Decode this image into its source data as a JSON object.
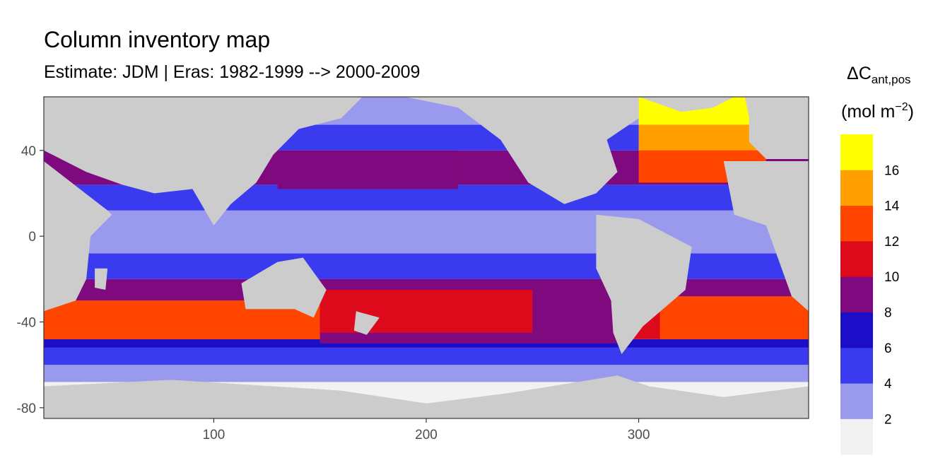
{
  "chart_data": {
    "type": "heatmap",
    "title": "Column inventory map",
    "subtitle": "Estimate: JDM  | Eras: 1982-1999 --> 2000-2009",
    "x_ticks": [
      100,
      200,
      300
    ],
    "y_ticks": [
      40,
      0,
      -40,
      -80
    ],
    "xlim": [
      20,
      380
    ],
    "ylim": [
      -85,
      65
    ],
    "legend": {
      "title_main": "ΔC",
      "title_sub": "ant,pos",
      "unit_main": "(mol m",
      "unit_sup": "−2",
      "unit_close": ")",
      "labels": [
        "2",
        "4",
        "6",
        "8",
        "10",
        "12",
        "14",
        "16"
      ],
      "colors": [
        "#F2F2F2",
        "#9999EE",
        "#3A3AEE",
        "#1C0DC8",
        "#7F0A7F",
        "#DD0A1C",
        "#FF4500",
        "#FFA000",
        "#FFFF00"
      ]
    },
    "land_color": "#CCCCCC",
    "bands": [
      {
        "name": "southern-ocean-far",
        "lat": [
          -85,
          -68
        ],
        "value": 1
      },
      {
        "name": "southern-ocean",
        "lat": [
          -68,
          -60
        ],
        "value": 2
      },
      {
        "name": "southern-front",
        "lat": [
          -60,
          -52
        ],
        "value": 4
      },
      {
        "name": "southern-mid",
        "lat": [
          -52,
          -48
        ],
        "value": 6
      },
      {
        "name": "subantarctic",
        "lat": [
          -48,
          -30
        ],
        "value": 11
      },
      {
        "name": "subtropical-south",
        "lat": [
          -30,
          -20
        ],
        "value": 9
      },
      {
        "name": "tropics-south",
        "lat": [
          -20,
          -8
        ],
        "value": 5
      },
      {
        "name": "equatorial",
        "lat": [
          -8,
          12
        ],
        "value": 3
      },
      {
        "name": "tropics-north",
        "lat": [
          12,
          24
        ],
        "value": 5
      },
      {
        "name": "subtropical-north",
        "lat": [
          24,
          40
        ],
        "value": 9
      },
      {
        "name": "north-mid",
        "lat": [
          40,
          52
        ],
        "value": 5
      },
      {
        "name": "north-high",
        "lat": [
          52,
          65
        ],
        "value": 3
      }
    ],
    "features": [
      {
        "name": "indian-subantarctic-hotspot",
        "lon": [
          20,
          150
        ],
        "lat": [
          -48,
          -30
        ],
        "value": 13
      },
      {
        "name": "atlantic-south-hotspot",
        "lon": [
          310,
          380
        ],
        "lat": [
          -48,
          -28
        ],
        "value": 13
      },
      {
        "name": "atlantic-north-hotspot",
        "lon": [
          300,
          360
        ],
        "lat": [
          25,
          45
        ],
        "value": 13
      },
      {
        "name": "atlantic-subpolar",
        "lon": [
          300,
          365
        ],
        "lat": [
          40,
          52
        ],
        "value": 15
      },
      {
        "name": "north-atlantic-high",
        "lon": [
          300,
          360
        ],
        "lat": [
          52,
          65
        ],
        "value": 17
      },
      {
        "name": "pacific-kuroshio",
        "lon": [
          130,
          215
        ],
        "lat": [
          22,
          40
        ],
        "value": 9
      },
      {
        "name": "pacific-south-gyre",
        "lon": [
          150,
          290
        ],
        "lat": [
          -50,
          -20
        ],
        "value": 9
      },
      {
        "name": "south-pacific-red",
        "lon": [
          150,
          250
        ],
        "lat": [
          -45,
          -25
        ],
        "value": 11
      }
    ],
    "land": [
      {
        "name": "north-america",
        "points": [
          [
            190,
            65
          ],
          [
            300,
            65
          ],
          [
            300,
            55
          ],
          [
            285,
            45
          ],
          [
            290,
            30
          ],
          [
            280,
            20
          ],
          [
            265,
            15
          ],
          [
            248,
            25
          ],
          [
            235,
            45
          ],
          [
            215,
            60
          ]
        ]
      },
      {
        "name": "south-america",
        "points": [
          [
            280,
            10
          ],
          [
            300,
            8
          ],
          [
            325,
            -5
          ],
          [
            322,
            -25
          ],
          [
            302,
            -42
          ],
          [
            292,
            -55
          ],
          [
            288,
            -45
          ],
          [
            287,
            -30
          ],
          [
            280,
            -15
          ]
        ]
      },
      {
        "name": "eurasia",
        "points": [
          [
            20,
            65
          ],
          [
            170,
            65
          ],
          [
            160,
            55
          ],
          [
            140,
            50
          ],
          [
            128,
            38
          ],
          [
            120,
            25
          ],
          [
            108,
            15
          ],
          [
            100,
            5
          ],
          [
            90,
            22
          ],
          [
            72,
            20
          ],
          [
            57,
            24
          ],
          [
            40,
            30
          ],
          [
            30,
            35
          ],
          [
            20,
            40
          ]
        ]
      },
      {
        "name": "europe-west",
        "points": [
          [
            350,
            65
          ],
          [
            380,
            65
          ],
          [
            380,
            36
          ],
          [
            360,
            36
          ],
          [
            352,
            44
          ],
          [
            352,
            55
          ]
        ]
      },
      {
        "name": "africa-east",
        "points": [
          [
            20,
            35
          ],
          [
            50,
            12
          ],
          [
            52,
            10
          ],
          [
            42,
            0
          ],
          [
            40,
            -20
          ],
          [
            35,
            -30
          ],
          [
            20,
            -35
          ]
        ]
      },
      {
        "name": "africa-west",
        "points": [
          [
            340,
            35
          ],
          [
            380,
            35
          ],
          [
            380,
            -35
          ],
          [
            372,
            -28
          ],
          [
            360,
            5
          ],
          [
            345,
            10
          ]
        ]
      },
      {
        "name": "australia",
        "points": [
          [
            113,
            -22
          ],
          [
            130,
            -12
          ],
          [
            142,
            -10
          ],
          [
            153,
            -25
          ],
          [
            147,
            -38
          ],
          [
            138,
            -34
          ],
          [
            115,
            -34
          ]
        ]
      },
      {
        "name": "madagascar",
        "points": [
          [
            44,
            -15
          ],
          [
            50,
            -15
          ],
          [
            49,
            -25
          ],
          [
            44,
            -24
          ]
        ]
      },
      {
        "name": "greenland",
        "points": [
          [
            300,
            65
          ],
          [
            345,
            65
          ],
          [
            335,
            60
          ],
          [
            320,
            58
          ]
        ]
      },
      {
        "name": "new-zealand",
        "points": [
          [
            167,
            -35
          ],
          [
            178,
            -38
          ],
          [
            172,
            -46
          ],
          [
            166,
            -44
          ]
        ]
      },
      {
        "name": "antarctica",
        "points": [
          [
            20,
            -70
          ],
          [
            80,
            -67
          ],
          [
            160,
            -72
          ],
          [
            200,
            -78
          ],
          [
            240,
            -73
          ],
          [
            290,
            -65
          ],
          [
            305,
            -70
          ],
          [
            340,
            -75
          ],
          [
            380,
            -70
          ],
          [
            380,
            -85
          ],
          [
            20,
            -85
          ]
        ]
      }
    ]
  }
}
